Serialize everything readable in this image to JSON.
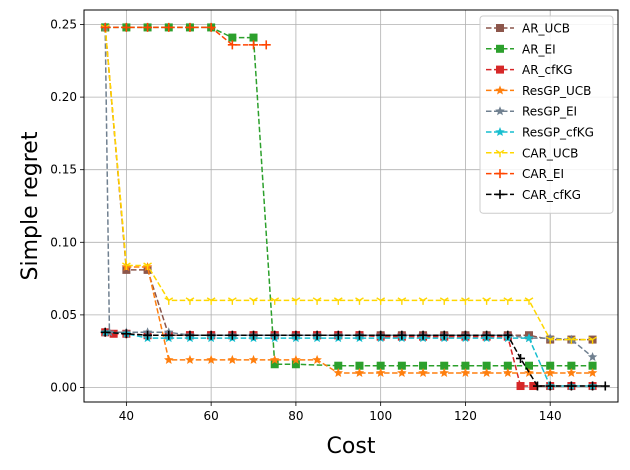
{
  "chart_data": {
    "type": "line",
    "xlabel": "Cost",
    "ylabel": "Simple regret",
    "xlim": [
      30,
      156
    ],
    "ylim": [
      -0.01,
      0.26
    ],
    "xticks": [
      40,
      60,
      80,
      100,
      120,
      140
    ],
    "yticks": [
      0.0,
      0.05,
      0.1,
      0.15,
      0.2,
      0.25
    ],
    "grid": true,
    "legend_position": "top-right",
    "series": [
      {
        "name": "AR_UCB",
        "color": "#8c564b",
        "marker": "square",
        "x": [
          35,
          40,
          45,
          50,
          55,
          60,
          65,
          70,
          75,
          80,
          85,
          90,
          95,
          100,
          105,
          110,
          115,
          120,
          125,
          130,
          135,
          140,
          145,
          150
        ],
        "y": [
          0.248,
          0.081,
          0.081,
          0.036,
          0.036,
          0.036,
          0.036,
          0.036,
          0.036,
          0.036,
          0.036,
          0.036,
          0.036,
          0.036,
          0.036,
          0.036,
          0.036,
          0.036,
          0.036,
          0.036,
          0.036,
          0.033,
          0.033,
          0.033
        ]
      },
      {
        "name": "AR_EI",
        "color": "#2ca02c",
        "marker": "square",
        "x": [
          35,
          40,
          45,
          50,
          55,
          60,
          65,
          70,
          75,
          80,
          90,
          95,
          100,
          105,
          110,
          115,
          120,
          125,
          130,
          135,
          140,
          145,
          150
        ],
        "y": [
          0.248,
          0.248,
          0.248,
          0.248,
          0.248,
          0.248,
          0.241,
          0.241,
          0.016,
          0.016,
          0.015,
          0.015,
          0.015,
          0.015,
          0.015,
          0.015,
          0.015,
          0.015,
          0.015,
          0.015,
          0.015,
          0.015,
          0.015
        ]
      },
      {
        "name": "AR_cfKG",
        "color": "#d62728",
        "marker": "square",
        "x": [
          35,
          37,
          40,
          45,
          50,
          55,
          60,
          65,
          70,
          75,
          80,
          85,
          90,
          95,
          100,
          105,
          110,
          115,
          120,
          125,
          130,
          133,
          136,
          140,
          145,
          150
        ],
        "y": [
          0.038,
          0.037,
          0.037,
          0.036,
          0.036,
          0.036,
          0.036,
          0.036,
          0.036,
          0.036,
          0.036,
          0.036,
          0.036,
          0.036,
          0.035,
          0.035,
          0.035,
          0.035,
          0.035,
          0.035,
          0.035,
          0.001,
          0.001,
          0.001,
          0.001,
          0.001
        ]
      },
      {
        "name": "ResGP_UCB",
        "color": "#ff7f0e",
        "marker": "star",
        "x": [
          35,
          40,
          45,
          50,
          55,
          60,
          65,
          70,
          75,
          80,
          85,
          90,
          95,
          100,
          105,
          110,
          115,
          120,
          125,
          130,
          135,
          140,
          145,
          150
        ],
        "y": [
          0.248,
          0.083,
          0.083,
          0.019,
          0.019,
          0.019,
          0.019,
          0.019,
          0.019,
          0.019,
          0.019,
          0.01,
          0.01,
          0.01,
          0.01,
          0.01,
          0.01,
          0.01,
          0.01,
          0.01,
          0.01,
          0.01,
          0.01,
          0.01
        ]
      },
      {
        "name": "ResGP_EI",
        "color": "#708090",
        "marker": "star",
        "x": [
          35,
          36,
          40,
          45,
          50,
          55,
          60,
          65,
          70,
          75,
          80,
          85,
          90,
          95,
          100,
          105,
          110,
          115,
          120,
          125,
          130,
          135,
          140,
          145,
          150
        ],
        "y": [
          0.248,
          0.038,
          0.038,
          0.038,
          0.038,
          0.036,
          0.036,
          0.036,
          0.036,
          0.036,
          0.036,
          0.036,
          0.036,
          0.036,
          0.036,
          0.036,
          0.036,
          0.036,
          0.036,
          0.036,
          0.036,
          0.034,
          0.034,
          0.033,
          0.021
        ]
      },
      {
        "name": "ResGP_cfKG",
        "color": "#17becf",
        "marker": "star",
        "x": [
          35,
          40,
          45,
          50,
          55,
          60,
          65,
          70,
          75,
          80,
          85,
          90,
          95,
          100,
          105,
          110,
          115,
          120,
          125,
          130,
          135,
          140,
          145,
          150
        ],
        "y": [
          0.038,
          0.037,
          0.034,
          0.034,
          0.034,
          0.034,
          0.034,
          0.034,
          0.034,
          0.034,
          0.034,
          0.034,
          0.034,
          0.034,
          0.034,
          0.034,
          0.034,
          0.034,
          0.034,
          0.034,
          0.034,
          0.001,
          0.001,
          0.001
        ]
      },
      {
        "name": "CAR_UCB",
        "color": "#ffd700",
        "marker": "tri",
        "x": [
          35,
          40,
          45,
          50,
          55,
          60,
          65,
          70,
          75,
          80,
          85,
          90,
          95,
          100,
          105,
          110,
          115,
          120,
          125,
          130,
          135,
          140,
          145,
          150
        ],
        "y": [
          0.248,
          0.084,
          0.084,
          0.06,
          0.06,
          0.06,
          0.06,
          0.06,
          0.06,
          0.06,
          0.06,
          0.06,
          0.06,
          0.06,
          0.06,
          0.06,
          0.06,
          0.06,
          0.06,
          0.06,
          0.06,
          0.033,
          0.033,
          0.033
        ]
      },
      {
        "name": "CAR_EI",
        "color": "#ff4500",
        "marker": "plus",
        "x": [
          35,
          40,
          45,
          50,
          55,
          60,
          65,
          70,
          73
        ],
        "y": [
          0.248,
          0.248,
          0.248,
          0.248,
          0.248,
          0.248,
          0.236,
          0.236,
          0.236
        ]
      },
      {
        "name": "CAR_cfKG",
        "color": "#000000",
        "marker": "plus",
        "x": [
          35,
          40,
          45,
          50,
          55,
          60,
          65,
          70,
          75,
          80,
          85,
          90,
          95,
          100,
          105,
          110,
          115,
          120,
          125,
          130,
          133,
          137,
          140,
          145,
          150,
          153
        ],
        "y": [
          0.038,
          0.037,
          0.036,
          0.036,
          0.036,
          0.036,
          0.036,
          0.036,
          0.036,
          0.036,
          0.036,
          0.036,
          0.036,
          0.036,
          0.036,
          0.036,
          0.036,
          0.036,
          0.036,
          0.036,
          0.02,
          0.001,
          0.001,
          0.001,
          0.001,
          0.001
        ]
      }
    ]
  }
}
